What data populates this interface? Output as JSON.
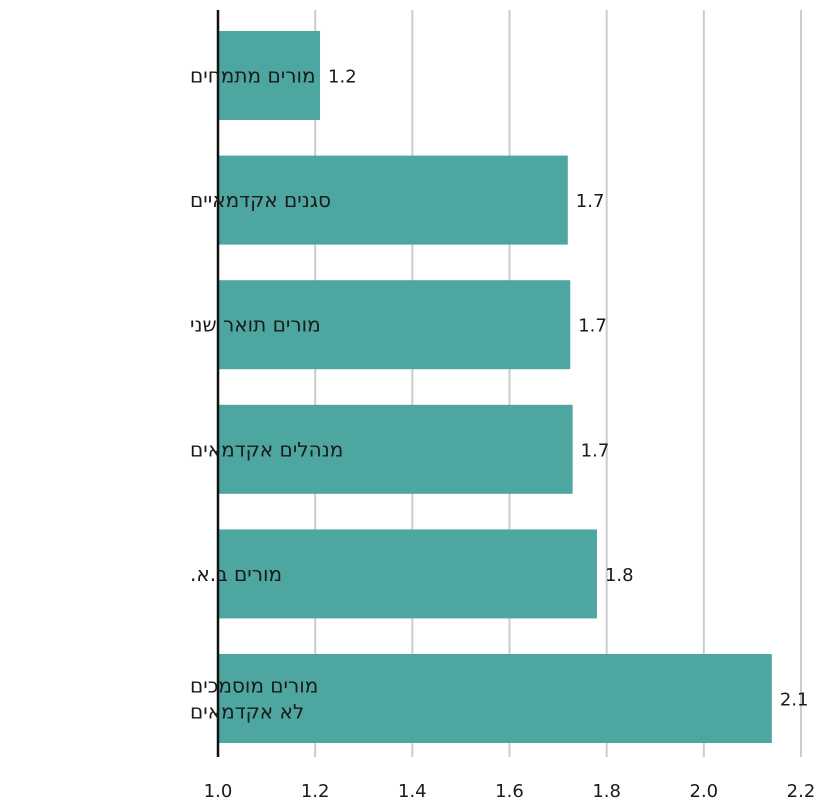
{
  "chart_data": {
    "type": "bar",
    "orientation": "horizontal",
    "categories": [
      [
        "מורים מתמחים"
      ],
      [
        "סגנים אקדמאיים"
      ],
      [
        "מורים תואר שני"
      ],
      [
        "מנהלים אקדמאים"
      ],
      [
        "מורים ב.א."
      ],
      [
        "מורים מוסמכים",
        "לא אקדמאים"
      ]
    ],
    "values": [
      1.21,
      1.72,
      1.725,
      1.73,
      1.78,
      2.14
    ],
    "value_labels": [
      "1.2",
      "1.7",
      "1.7",
      "1.7",
      "1.8",
      "2.1"
    ],
    "xlim": [
      1.0,
      2.2
    ],
    "x_ticks": [
      1.0,
      1.2,
      1.4,
      1.6,
      1.8,
      2.0,
      2.2
    ],
    "x_tick_labels": [
      "1.0",
      "1.2",
      "1.4",
      "1.6",
      "1.8",
      "2.0",
      "2.2"
    ],
    "title": "",
    "xlabel": "",
    "ylabel": "",
    "grid": "vertical",
    "legend": "none",
    "colors": {
      "bar": "#4ea6a0",
      "grid": "#cccccc",
      "axis": "#111111",
      "text": "#1a1a1a"
    }
  }
}
